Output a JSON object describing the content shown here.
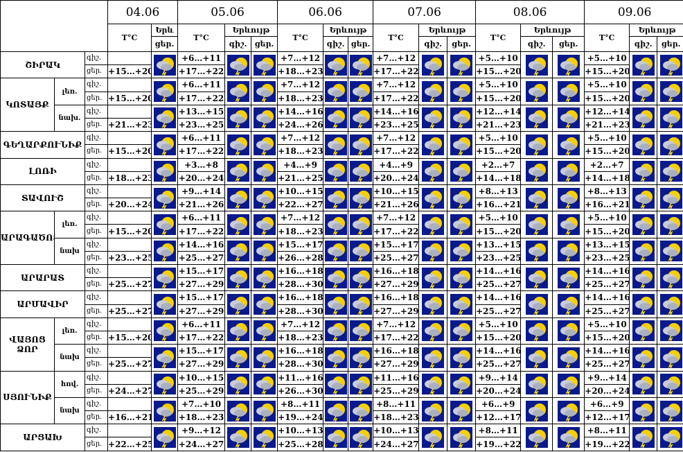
{
  "header": {
    "dates": [
      "04.06",
      "05.06",
      "06.06",
      "07.06",
      "08.06",
      "09.06"
    ],
    "temp": "T°C",
    "phenomena": "Երևույթ",
    "phenomena_short": "Երև",
    "night": "գիշ.",
    "day": "ցեր."
  },
  "regions": [
    {
      "name": "ՇԻՐԱԿ",
      "rows": [
        {
          "temps": [
            [
              null,
              "+15…+20"
            ],
            [
              "+6…+11",
              "+17…+22"
            ],
            [
              "+7…+12",
              "+18…+23"
            ],
            [
              "+7…+12",
              "+17…+22"
            ],
            [
              "+5…+10",
              "+15…+20"
            ],
            [
              "+5…+10",
              "+15…+20"
            ]
          ]
        }
      ]
    },
    {
      "name": "ԿՈՏԱՅՔ",
      "rows": [
        {
          "sub": "լեռ.",
          "temps": [
            [
              null,
              "+15…+20"
            ],
            [
              "+6…+11",
              "+17…+22"
            ],
            [
              "+7…+12",
              "+18…+23"
            ],
            [
              "+7…+12",
              "+17…+22"
            ],
            [
              "+5…+10",
              "+15…+20"
            ],
            [
              "+5…+10",
              "+15…+20"
            ]
          ]
        },
        {
          "sub": "նախ.",
          "temps": [
            [
              null,
              "+21…+23"
            ],
            [
              "+13…+15",
              "+23…+25"
            ],
            [
              "+14…+16",
              "+24…+26"
            ],
            [
              "+14…+16",
              "+23…+25"
            ],
            [
              "+12…+14",
              "+21…+23"
            ],
            [
              "+12…+14",
              "+21…+23"
            ]
          ]
        }
      ]
    },
    {
      "name": "ԳԵՂԱՐՔՈՒՆԻՔ",
      "rows": [
        {
          "temps": [
            [
              null,
              "+15…+20"
            ],
            [
              "+6…+11",
              "+17…+22"
            ],
            [
              "+7…+12",
              "+18…+23"
            ],
            [
              "+7…+12",
              "+17…+22"
            ],
            [
              "+5…+10",
              "+15…+20"
            ],
            [
              "+5…+10",
              "+15…+20"
            ]
          ]
        }
      ]
    },
    {
      "name": "ԼՈՌԻ",
      "rows": [
        {
          "temps": [
            [
              null,
              "+18…+23"
            ],
            [
              "+3…+8",
              "+20…+24"
            ],
            [
              "+4…+9",
              "+21…+25"
            ],
            [
              "+4…+9",
              "+20…+24"
            ],
            [
              "+2…+7",
              "+14…+18"
            ],
            [
              "+2…+7",
              "+14…+18"
            ]
          ]
        }
      ]
    },
    {
      "name": "ՏԱՎՈՒՇ",
      "rows": [
        {
          "temps": [
            [
              null,
              "+20…+24"
            ],
            [
              "+9…+14",
              "+21…+26"
            ],
            [
              "+10…+15",
              "+22…+27"
            ],
            [
              "+10…+15",
              "+21…+26"
            ],
            [
              "+8…+13",
              "+16…+21"
            ],
            [
              "+8…+13",
              "+16…+21"
            ]
          ]
        }
      ]
    },
    {
      "name": "ԱՐԱԳԱԾՈՏՆ",
      "rows": [
        {
          "sub": "լեռ.",
          "temps": [
            [
              null,
              "+15…+20"
            ],
            [
              "+6…+11",
              "+17…+22"
            ],
            [
              "+7…+12",
              "+18…+23"
            ],
            [
              "+7…+12",
              "+17…+22"
            ],
            [
              "+5…+10",
              "+15…+20"
            ],
            [
              "+5…+10",
              "+15…+20"
            ]
          ]
        },
        {
          "sub": "նախ",
          "temps": [
            [
              null,
              "+23…+25"
            ],
            [
              "+14…+16",
              "+25…+27"
            ],
            [
              "+15…+17",
              "+26…+28"
            ],
            [
              "+15…+17",
              "+25…+27"
            ],
            [
              "+13…+15",
              "+23…+25"
            ],
            [
              "+13…+15",
              "+23…+25"
            ]
          ]
        }
      ]
    },
    {
      "name": "ԱՐԱՐԱՏ",
      "rows": [
        {
          "temps": [
            [
              null,
              "+25…+27"
            ],
            [
              "+15…+17",
              "+27…+29"
            ],
            [
              "+16…+18",
              "+28…+30"
            ],
            [
              "+16…+18",
              "+27…+29"
            ],
            [
              "+14…+16",
              "+25…+27"
            ],
            [
              "+14…+16",
              "+25…+27"
            ]
          ]
        }
      ]
    },
    {
      "name": "ԱՐՄԱՎԻՐ",
      "rows": [
        {
          "temps": [
            [
              null,
              "+25…+27"
            ],
            [
              "+15…+17",
              "+27…+29"
            ],
            [
              "+16…+18",
              "+28…+30"
            ],
            [
              "+16…+18",
              "+27…+29"
            ],
            [
              "+14…+16",
              "+25…+27"
            ],
            [
              "+14…+16",
              "+25…+27"
            ]
          ]
        }
      ]
    },
    {
      "name": "ՎԱՅՈՑ ՁՈՐ",
      "rows": [
        {
          "sub": "լեռ.",
          "temps": [
            [
              null,
              "+15…+20"
            ],
            [
              "+6…+11",
              "+17…+22"
            ],
            [
              "+7…+12",
              "+18…+23"
            ],
            [
              "+7…+12",
              "+17…+22"
            ],
            [
              "+5…+10",
              "+15…+20"
            ],
            [
              "+5…+10",
              "+15…+20"
            ]
          ]
        },
        {
          "sub": "նախ",
          "temps": [
            [
              null,
              "+25…+27"
            ],
            [
              "+15…+17",
              "+27…+29"
            ],
            [
              "+16…+18",
              "+28…+30"
            ],
            [
              "+16…+18",
              "+27…+29"
            ],
            [
              "+14…+16",
              "+25…+27"
            ],
            [
              "+14…+16",
              "+25…+27"
            ]
          ]
        }
      ]
    },
    {
      "name": "ՍՅՈՒՆԻՔ",
      "rows": [
        {
          "sub": "հով.",
          "temps": [
            [
              null,
              "+24…+27"
            ],
            [
              "+10…+15",
              "+25…+29"
            ],
            [
              "+11…+16",
              "+26…+30"
            ],
            [
              "+11…+16",
              "+25…+29"
            ],
            [
              "+9…+14",
              "+20…+24"
            ],
            [
              "+9…+14",
              "+20…+24"
            ]
          ]
        },
        {
          "sub": "նախ",
          "temps": [
            [
              null,
              "+16…+21"
            ],
            [
              "+7…+10",
              "+18…+23"
            ],
            [
              "+8…+11",
              "+19…+24"
            ],
            [
              "+8…+11",
              "+18…+23"
            ],
            [
              "+6…+9",
              "+12…+17"
            ],
            [
              "+6…+9",
              "+12…+17"
            ]
          ]
        }
      ]
    },
    {
      "name": "ԱՐՑԱԽ",
      "rows": [
        {
          "temps": [
            [
              null,
              "+22…+25"
            ],
            [
              "+9…+12",
              "+24…+27"
            ],
            [
              "+10…+13",
              "+25…+28"
            ],
            [
              "+10…+13",
              "+24…+27"
            ],
            [
              "+8…+11",
              "+19…+22"
            ],
            [
              "+8…+11",
              "+19…+22"
            ]
          ]
        }
      ]
    }
  ]
}
